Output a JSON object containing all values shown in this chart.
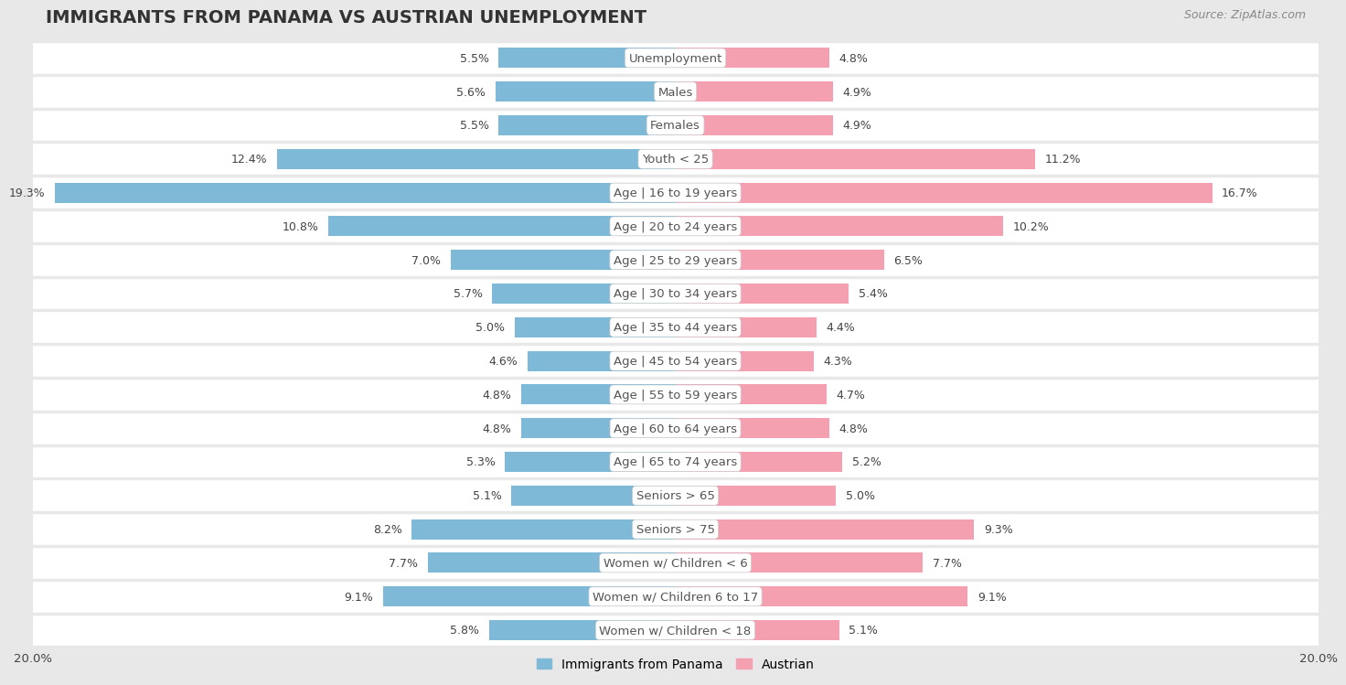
{
  "title": "IMMIGRANTS FROM PANAMA VS AUSTRIAN UNEMPLOYMENT",
  "source": "Source: ZipAtlas.com",
  "categories": [
    "Unemployment",
    "Males",
    "Females",
    "Youth < 25",
    "Age | 16 to 19 years",
    "Age | 20 to 24 years",
    "Age | 25 to 29 years",
    "Age | 30 to 34 years",
    "Age | 35 to 44 years",
    "Age | 45 to 54 years",
    "Age | 55 to 59 years",
    "Age | 60 to 64 years",
    "Age | 65 to 74 years",
    "Seniors > 65",
    "Seniors > 75",
    "Women w/ Children < 6",
    "Women w/ Children 6 to 17",
    "Women w/ Children < 18"
  ],
  "panama_values": [
    5.5,
    5.6,
    5.5,
    12.4,
    19.3,
    10.8,
    7.0,
    5.7,
    5.0,
    4.6,
    4.8,
    4.8,
    5.3,
    5.1,
    8.2,
    7.7,
    9.1,
    5.8
  ],
  "austrian_values": [
    4.8,
    4.9,
    4.9,
    11.2,
    16.7,
    10.2,
    6.5,
    5.4,
    4.4,
    4.3,
    4.7,
    4.8,
    5.2,
    5.0,
    9.3,
    7.7,
    9.1,
    5.1
  ],
  "panama_color": "#7fb9d8",
  "austrian_color": "#f4a0b0",
  "row_bg_white": "#ffffff",
  "row_bg_gray": "#e8e8e8",
  "fig_bg": "#e8e8e8",
  "xlim": 20.0,
  "bar_height": 0.6,
  "title_fontsize": 14,
  "label_fontsize": 9.5,
  "value_fontsize": 9,
  "legend_fontsize": 10,
  "source_fontsize": 9,
  "cat_label_color": "#555555",
  "value_color": "#444444"
}
